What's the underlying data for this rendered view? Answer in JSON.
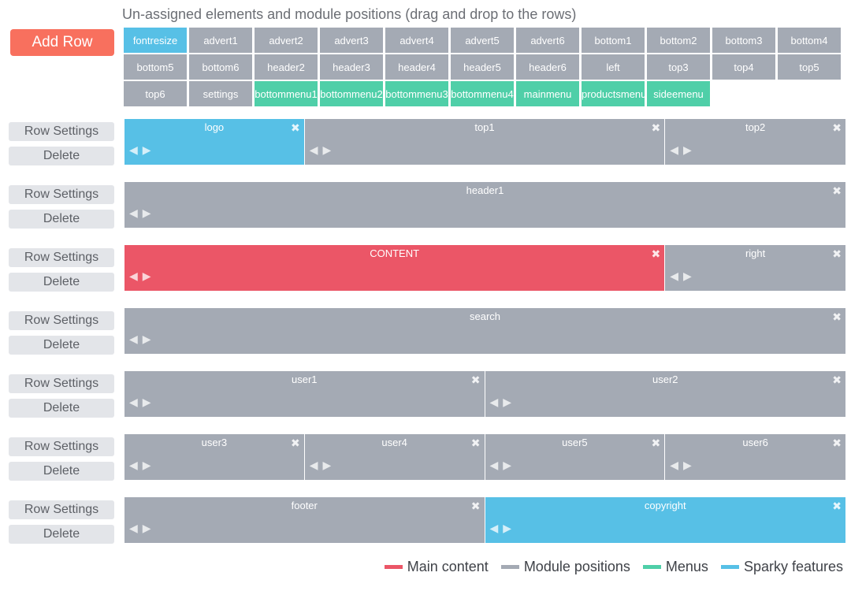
{
  "header": {
    "title": "Un-assigned elements and module positions (drag and drop to the rows)",
    "add_row_label": "Add Row"
  },
  "colors": {
    "main": "#eb5667",
    "position": "#a4aab4",
    "menu": "#4fcfa8",
    "sparky": "#57c0e6",
    "add_button": "#f8705e"
  },
  "unassigned": [
    {
      "label": "fontresize",
      "type": "sparky"
    },
    {
      "label": "advert1",
      "type": "position"
    },
    {
      "label": "advert2",
      "type": "position"
    },
    {
      "label": "advert3",
      "type": "position"
    },
    {
      "label": "advert4",
      "type": "position"
    },
    {
      "label": "advert5",
      "type": "position"
    },
    {
      "label": "advert6",
      "type": "position"
    },
    {
      "label": "bottom1",
      "type": "position"
    },
    {
      "label": "bottom2",
      "type": "position"
    },
    {
      "label": "bottom3",
      "type": "position"
    },
    {
      "label": "bottom4",
      "type": "position"
    },
    {
      "label": "bottom5",
      "type": "position"
    },
    {
      "label": "bottom6",
      "type": "position"
    },
    {
      "label": "header2",
      "type": "position"
    },
    {
      "label": "header3",
      "type": "position"
    },
    {
      "label": "header4",
      "type": "position"
    },
    {
      "label": "header5",
      "type": "position"
    },
    {
      "label": "header6",
      "type": "position"
    },
    {
      "label": "left",
      "type": "position"
    },
    {
      "label": "top3",
      "type": "position"
    },
    {
      "label": "top4",
      "type": "position"
    },
    {
      "label": "top5",
      "type": "position"
    },
    {
      "label": "top6",
      "type": "position"
    },
    {
      "label": "settings",
      "type": "position"
    },
    {
      "label": "bottommenu1",
      "type": "menu"
    },
    {
      "label": "bottommenu2",
      "type": "menu"
    },
    {
      "label": "bottommenu3",
      "type": "menu"
    },
    {
      "label": "bottommenu4",
      "type": "menu"
    },
    {
      "label": "mainmenu",
      "type": "menu"
    },
    {
      "label": "productsmenu",
      "type": "menu"
    },
    {
      "label": "sideemenu",
      "type": "menu"
    }
  ],
  "row_buttons": {
    "settings": "Row Settings",
    "delete": "Delete"
  },
  "rows": [
    {
      "blocks": [
        {
          "label": "logo",
          "type": "sparky",
          "span": 3
        },
        {
          "label": "top1",
          "type": "position",
          "span": 6
        },
        {
          "label": "top2",
          "type": "position",
          "span": 3
        }
      ]
    },
    {
      "blocks": [
        {
          "label": "header1",
          "type": "position",
          "span": 12
        }
      ]
    },
    {
      "blocks": [
        {
          "label": "CONTENT",
          "type": "main",
          "span": 9
        },
        {
          "label": "right",
          "type": "position",
          "span": 3
        }
      ]
    },
    {
      "blocks": [
        {
          "label": "search",
          "type": "position",
          "span": 12
        }
      ]
    },
    {
      "blocks": [
        {
          "label": "user1",
          "type": "position",
          "span": 6
        },
        {
          "label": "user2",
          "type": "position",
          "span": 6
        }
      ]
    },
    {
      "blocks": [
        {
          "label": "user3",
          "type": "position",
          "span": 3
        },
        {
          "label": "user4",
          "type": "position",
          "span": 3
        },
        {
          "label": "user5",
          "type": "position",
          "span": 3
        },
        {
          "label": "user6",
          "type": "position",
          "span": 3
        }
      ]
    },
    {
      "blocks": [
        {
          "label": "footer",
          "type": "position",
          "span": 6
        },
        {
          "label": "copyright",
          "type": "sparky",
          "span": 6
        }
      ]
    }
  ],
  "block_icons": {
    "close": "close-icon",
    "left": "arrow-left-icon",
    "right": "arrow-right-icon"
  },
  "legend": [
    {
      "label": "Main content",
      "type": "main"
    },
    {
      "label": "Module positions",
      "type": "position"
    },
    {
      "label": "Menus",
      "type": "menu"
    },
    {
      "label": "Sparky features",
      "type": "sparky"
    }
  ]
}
